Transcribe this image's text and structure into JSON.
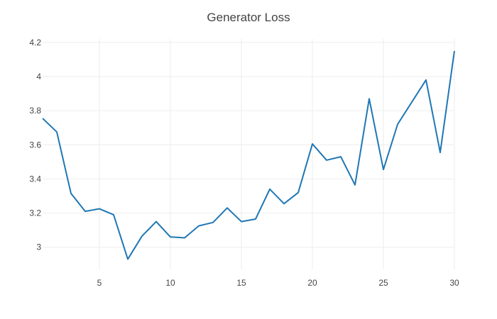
{
  "chart_data": {
    "type": "line",
    "title": "Generator Loss",
    "xlabel": "",
    "ylabel": "",
    "xlim": [
      1,
      30
    ],
    "ylim": [
      2.87,
      4.22
    ],
    "x_ticks": [
      5,
      10,
      15,
      20,
      25,
      30
    ],
    "y_ticks": [
      3,
      3.2,
      3.4,
      3.6,
      3.8,
      4,
      4.2
    ],
    "grid": true,
    "legend": "none",
    "series": [
      {
        "color": "#1f77b4",
        "x": [
          1,
          2,
          3,
          4,
          5,
          6,
          7,
          8,
          9,
          10,
          11,
          12,
          13,
          14,
          15,
          16,
          17,
          18,
          19,
          20,
          21,
          22,
          23,
          24,
          25,
          26,
          27,
          28,
          29,
          30
        ],
        "y": [
          3.755,
          3.675,
          3.315,
          3.21,
          3.225,
          3.19,
          2.93,
          3.065,
          3.15,
          3.06,
          3.055,
          3.125,
          3.145,
          3.23,
          3.15,
          3.165,
          3.34,
          3.255,
          3.32,
          3.605,
          3.51,
          3.53,
          3.365,
          3.87,
          3.455,
          3.72,
          3.85,
          3.98,
          3.555,
          4.15
        ]
      }
    ]
  }
}
